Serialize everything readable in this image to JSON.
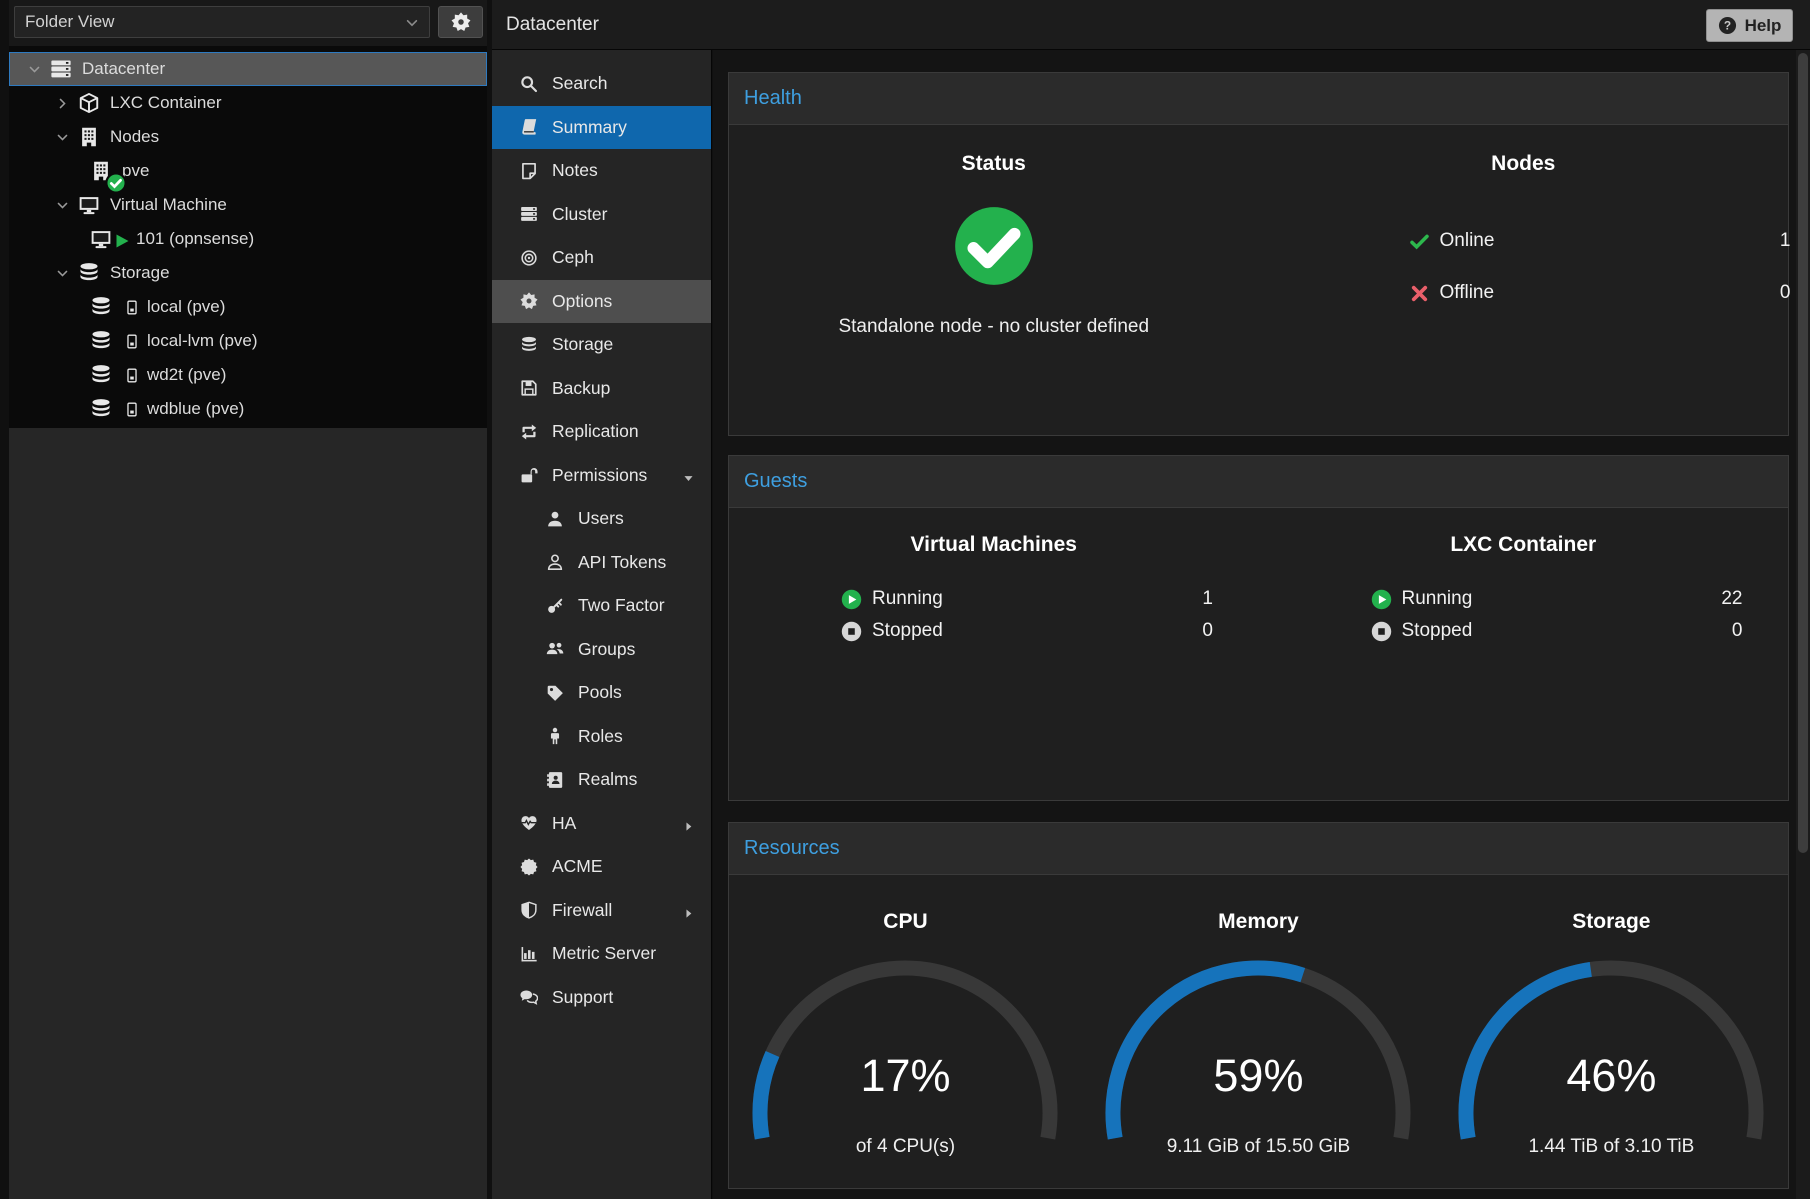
{
  "header": {
    "title": "Datacenter",
    "help_label": "Help"
  },
  "left_panel": {
    "view_selector": "Folder View"
  },
  "tree": {
    "items": [
      {
        "label": "Datacenter",
        "icon": "server",
        "level": 0,
        "expander": "down",
        "selected": true
      },
      {
        "label": "LXC Container",
        "icon": "cube",
        "level": 1,
        "expander": "right"
      },
      {
        "label": "Nodes",
        "icon": "building",
        "level": 1,
        "expander": "down"
      },
      {
        "label": "pve",
        "icon": "building",
        "level": 2,
        "badge": "check"
      },
      {
        "label": "Virtual Machine",
        "icon": "monitor",
        "level": 1,
        "expander": "down"
      },
      {
        "label": "101 (opnsense)",
        "icon": "monitor",
        "level": 2,
        "badge": "play"
      },
      {
        "label": "Storage",
        "icon": "database",
        "level": 1,
        "expander": "down"
      },
      {
        "label": "local (pve)",
        "icon": "database",
        "level": 2,
        "badge": "drive"
      },
      {
        "label": "local-lvm (pve)",
        "icon": "database",
        "level": 2,
        "badge": "drive"
      },
      {
        "label": "wd2t (pve)",
        "icon": "database",
        "level": 2,
        "badge": "drive"
      },
      {
        "label": "wdblue (pve)",
        "icon": "database",
        "level": 2,
        "badge": "drive"
      }
    ]
  },
  "nav": {
    "items": [
      {
        "label": "Search",
        "icon": "search"
      },
      {
        "label": "Summary",
        "icon": "book",
        "state": "selected"
      },
      {
        "label": "Notes",
        "icon": "note"
      },
      {
        "label": "Cluster",
        "icon": "server"
      },
      {
        "label": "Ceph",
        "icon": "ceph"
      },
      {
        "label": "Options",
        "icon": "gear",
        "state": "hover"
      },
      {
        "label": "Storage",
        "icon": "database"
      },
      {
        "label": "Backup",
        "icon": "floppy"
      },
      {
        "label": "Replication",
        "icon": "retweet"
      },
      {
        "label": "Permissions",
        "icon": "unlock",
        "arrow": "down"
      },
      {
        "label": "Users",
        "icon": "user",
        "indent": true
      },
      {
        "label": "API Tokens",
        "icon": "user-o",
        "indent": true
      },
      {
        "label": "Two Factor",
        "icon": "key",
        "indent": true
      },
      {
        "label": "Groups",
        "icon": "users",
        "indent": true
      },
      {
        "label": "Pools",
        "icon": "tag",
        "indent": true
      },
      {
        "label": "Roles",
        "icon": "male",
        "indent": true
      },
      {
        "label": "Realms",
        "icon": "address-book",
        "indent": true
      },
      {
        "label": "HA",
        "icon": "heartbeat",
        "arrow": "right"
      },
      {
        "label": "ACME",
        "icon": "seal"
      },
      {
        "label": "Firewall",
        "icon": "shield",
        "arrow": "right"
      },
      {
        "label": "Metric Server",
        "icon": "chart-bar"
      },
      {
        "label": "Support",
        "icon": "comments"
      }
    ]
  },
  "panels": {
    "health": {
      "title": "Health",
      "status": {
        "heading": "Status",
        "message": "Standalone node - no cluster defined"
      },
      "nodes": {
        "heading": "Nodes",
        "rows": [
          {
            "icon": "check",
            "label": "Online",
            "value": "1"
          },
          {
            "icon": "cross",
            "label": "Offline",
            "value": "0"
          }
        ]
      }
    },
    "guests": {
      "title": "Guests",
      "groups": [
        {
          "heading": "Virtual Machines",
          "rows": [
            {
              "icon": "running",
              "label": "Running",
              "value": "1"
            },
            {
              "icon": "stopped",
              "label": "Stopped",
              "value": "0"
            }
          ]
        },
        {
          "heading": "LXC Container",
          "rows": [
            {
              "icon": "running",
              "label": "Running",
              "value": "22"
            },
            {
              "icon": "stopped",
              "label": "Stopped",
              "value": "0"
            }
          ]
        }
      ]
    },
    "resources": {
      "title": "Resources",
      "gauges": [
        {
          "heading": "CPU",
          "percent": 17,
          "percent_label": "17%",
          "sub": "of 4 CPU(s)"
        },
        {
          "heading": "Memory",
          "percent": 59,
          "percent_label": "59%",
          "sub": "9.11 GiB of 15.50 GiB"
        },
        {
          "heading": "Storage",
          "percent": 46,
          "percent_label": "46%",
          "sub": "1.44 TiB of 3.10 TiB"
        }
      ]
    }
  },
  "colors": {
    "accent_blue": "#1673bb",
    "nav_selected": "#0f67ad",
    "panel_title_blue": "#3e9fe0",
    "ok_green": "#23b14d",
    "error_red": "#e95f6a",
    "gauge_track": "#383838"
  }
}
